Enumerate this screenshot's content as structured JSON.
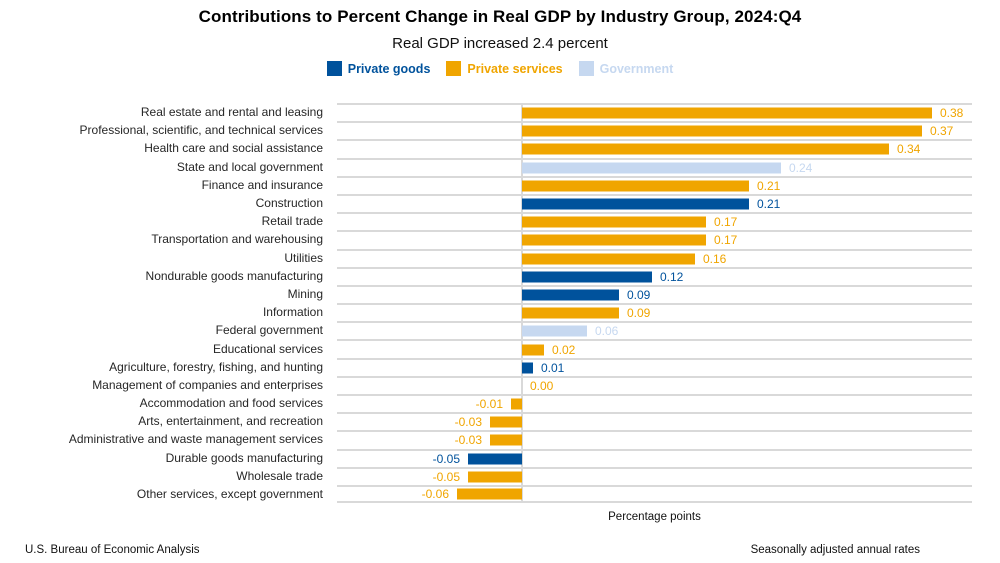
{
  "header": {
    "title": "Contributions to Percent Change in Real GDP by Industry Group, 2024:Q4",
    "subtitle": "Real GDP increased 2.4 percent"
  },
  "colors": {
    "private_goods": "#00529C",
    "private_services": "#F0A500",
    "government": "#C6D8F0",
    "gridline": "#D9D9D9"
  },
  "legend": {
    "items": [
      {
        "label": "Private goods",
        "group": "private_goods"
      },
      {
        "label": "Private services",
        "group": "private_services"
      },
      {
        "label": "Government",
        "group": "government"
      }
    ]
  },
  "chart_data": {
    "type": "bar",
    "orientation": "horizontal",
    "title": "Contributions to Percent Change in Real GDP by Industry Group, 2024:Q4",
    "subtitle": "Real GDP increased 2.4 percent",
    "xlabel": "Percentage points",
    "xlim": [
      -0.171,
      0.417
    ],
    "grid": true,
    "legend_position": "top",
    "categories": [
      "Real estate and rental and leasing",
      "Professional, scientific, and technical services",
      "Health care and social assistance",
      "State and local government",
      "Finance and insurance",
      "Construction",
      "Retail trade",
      "Transportation and warehousing",
      "Utilities",
      "Nondurable goods manufacturing",
      "Mining",
      "Information",
      "Federal government",
      "Educational services",
      "Agriculture, forestry, fishing, and hunting",
      "Management of companies and enterprises",
      "Accommodation and food services",
      "Arts, entertainment, and recreation",
      "Administrative and waste management services",
      "Durable goods manufacturing",
      "Wholesale trade",
      "Other services, except government"
    ],
    "values": [
      0.38,
      0.37,
      0.34,
      0.24,
      0.21,
      0.21,
      0.17,
      0.17,
      0.16,
      0.12,
      0.09,
      0.09,
      0.06,
      0.02,
      0.01,
      0.0,
      -0.01,
      -0.03,
      -0.03,
      -0.05,
      -0.05,
      -0.06
    ],
    "groups": [
      "private_services",
      "private_services",
      "private_services",
      "government",
      "private_services",
      "private_goods",
      "private_services",
      "private_services",
      "private_services",
      "private_goods",
      "private_goods",
      "private_services",
      "government",
      "private_services",
      "private_goods",
      "private_services",
      "private_services",
      "private_services",
      "private_services",
      "private_goods",
      "private_services",
      "private_services"
    ],
    "value_labels": [
      "0.38",
      "0.37",
      "0.34",
      "0.24",
      "0.21",
      "0.21",
      "0.17",
      "0.17",
      "0.16",
      "0.12",
      "0.09",
      "0.09",
      "0.06",
      "0.02",
      "0.01",
      "0.00",
      "-0.01",
      "-0.03",
      "-0.03",
      "-0.05",
      "-0.05",
      "-0.06"
    ]
  },
  "footer": {
    "source": "U.S. Bureau of Economic Analysis",
    "note": "Seasonally adjusted annual rates"
  }
}
